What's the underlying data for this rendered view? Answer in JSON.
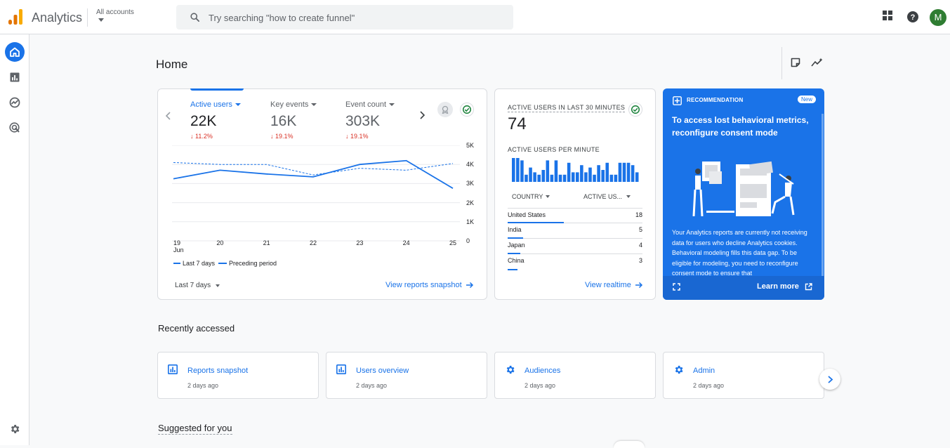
{
  "app": {
    "name": "Analytics",
    "account_label": "All accounts",
    "search_placeholder": "Try searching \"how to create funnel\"",
    "avatar_initial": "M",
    "accent": "#1a73e8"
  },
  "nav": {
    "items": [
      {
        "name": "home",
        "icon": "home-icon",
        "active": true
      },
      {
        "name": "reports",
        "icon": "bar-chart-icon"
      },
      {
        "name": "explore",
        "icon": "explore-icon"
      },
      {
        "name": "advertising",
        "icon": "target-icon"
      }
    ],
    "settings_icon": "gear-icon"
  },
  "page": {
    "title": "Home"
  },
  "overview": {
    "metrics": [
      {
        "label": "Active users",
        "value": "22K",
        "change": "11.2%",
        "active": true
      },
      {
        "label": "Key events",
        "value": "16K",
        "change": "19.1%"
      },
      {
        "label": "Event count",
        "value": "303K",
        "change": "19.1%"
      }
    ],
    "legend_current": "Last 7 days",
    "legend_previous": "Preceding period",
    "date_range": "Last 7 days",
    "link": "View reports snapshot"
  },
  "chart_data": {
    "type": "line",
    "x": [
      "19 Jun",
      "20",
      "21",
      "22",
      "23",
      "24",
      "25"
    ],
    "y_ticks": [
      "5K",
      "4K",
      "3K",
      "2K",
      "1K",
      "0"
    ],
    "ylim": [
      0,
      5000
    ],
    "series": [
      {
        "name": "Last 7 days",
        "values": [
          3250,
          3700,
          3500,
          3350,
          4000,
          4200,
          2750
        ],
        "style": "solid"
      },
      {
        "name": "Preceding period",
        "values": [
          4100,
          4000,
          4000,
          3450,
          3800,
          3700,
          4050
        ],
        "style": "dashed"
      }
    ]
  },
  "realtime": {
    "title": "ACTIVE USERS IN LAST 30 MINUTES",
    "value": "74",
    "per_minute_label": "ACTIVE USERS PER MINUTE",
    "per_minute": [
      10,
      10,
      9,
      3,
      6,
      4,
      3,
      5,
      9,
      3,
      9,
      3,
      3,
      8,
      4,
      4,
      7,
      4,
      6,
      3,
      7,
      5,
      8,
      3,
      3,
      8,
      8,
      8,
      7,
      4
    ],
    "col_country": "COUNTRY",
    "col_users": "ACTIVE US...",
    "rows": [
      {
        "country": "United States",
        "users": "18",
        "share": 1.0
      },
      {
        "country": "India",
        "users": "5",
        "share": 0.28
      },
      {
        "country": "Japan",
        "users": "4",
        "share": 0.22
      },
      {
        "country": "China",
        "users": "3",
        "share": 0.17
      }
    ],
    "link": "View realtime"
  },
  "recommendation": {
    "label": "RECOMMENDATION",
    "badge": "New",
    "title": "To access lost behavioral metrics, reconfigure consent mode",
    "body": "Your Analytics reports are currently not receiving data for users who decline Analytics cookies. Behavioral modeling fills this data gap. To be eligible for modeling, you need to reconfigure consent mode to ensure that",
    "link": "Learn more"
  },
  "recent": {
    "title": "Recently accessed",
    "items": [
      {
        "label": "Reports snapshot",
        "time": "2 days ago",
        "icon": "report-icon"
      },
      {
        "label": "Users overview",
        "time": "2 days ago",
        "icon": "report-icon"
      },
      {
        "label": "Audiences",
        "time": "2 days ago",
        "icon": "gear-icon"
      },
      {
        "label": "Admin",
        "time": "2 days ago",
        "icon": "gear-icon"
      }
    ]
  },
  "suggested": {
    "title": "Suggested for you"
  }
}
